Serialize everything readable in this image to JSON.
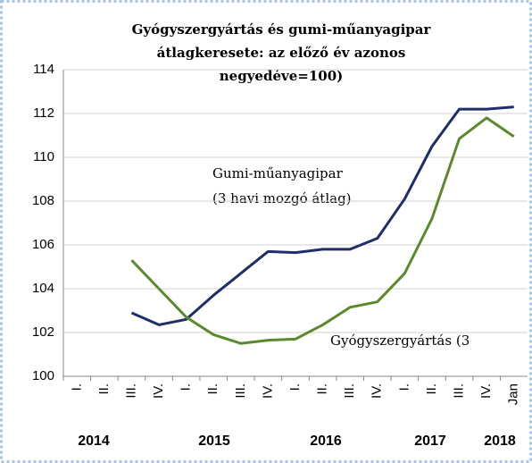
{
  "chart_data": {
    "type": "line",
    "title": [
      "Gyógyszergyártás és gumi-műanyagipar",
      "átlagkeresete: az előző év azonos",
      "negyedéve=100)"
    ],
    "categories": [
      "I.",
      "II.",
      "III.",
      "IV.",
      "I.",
      "II.",
      "III.",
      "IV.",
      "I.",
      "II.",
      "III.",
      "IV.",
      "I.",
      "II.",
      "III.",
      "IV.",
      "Jan"
    ],
    "year_labels": [
      "2014",
      "2015",
      "2016",
      "2017",
      "2018"
    ],
    "series": [
      {
        "name": "Gumi-műanyagipar",
        "color": "#1f2d6b",
        "values": [
          null,
          null,
          102.9,
          102.35,
          102.6,
          103.7,
          104.7,
          105.7,
          105.65,
          105.8,
          105.8,
          106.3,
          108.1,
          110.5,
          112.2,
          112.2,
          112.3
        ]
      },
      {
        "name": "Gyógyszergyártás",
        "color": "#5b8a2e",
        "values": [
          null,
          null,
          105.3,
          104.0,
          102.7,
          101.9,
          101.5,
          101.65,
          101.7,
          102.35,
          103.15,
          103.4,
          104.7,
          107.2,
          110.85,
          111.8,
          110.95
        ]
      }
    ],
    "annotations": [
      "Gumi-műanyagipar",
      "(3 havi mozgó átlag)",
      "Gyógyszergyártás (3"
    ],
    "ylim": [
      100,
      114
    ],
    "yticks": [
      100,
      102,
      104,
      106,
      108,
      110,
      112,
      114
    ],
    "grid": true
  }
}
